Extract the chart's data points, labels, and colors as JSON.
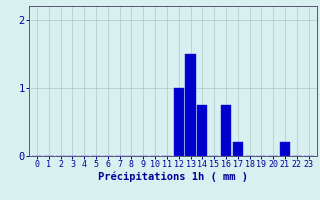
{
  "categories": [
    0,
    1,
    2,
    3,
    4,
    5,
    6,
    7,
    8,
    9,
    10,
    11,
    12,
    13,
    14,
    15,
    16,
    17,
    18,
    19,
    20,
    21,
    22,
    23
  ],
  "values": [
    0,
    0,
    0,
    0,
    0,
    0,
    0,
    0,
    0,
    0,
    0,
    0,
    1.0,
    1.5,
    0.75,
    0,
    0.75,
    0.2,
    0,
    0,
    0,
    0.2,
    0,
    0
  ],
  "bar_color": "#0000cc",
  "bar_edge_color": "#1111ee",
  "background_color": "#d8f0f0",
  "grid_color": "#b0c8c8",
  "axis_color": "#555577",
  "tick_label_color": "#000099",
  "xlabel": "Précipitations 1h ( mm )",
  "xlabel_color": "#000099",
  "ylim": [
    0,
    2.2
  ],
  "yticks": [
    0,
    1,
    2
  ],
  "xlabel_fontsize": 7.5,
  "tick_fontsize": 6.0
}
